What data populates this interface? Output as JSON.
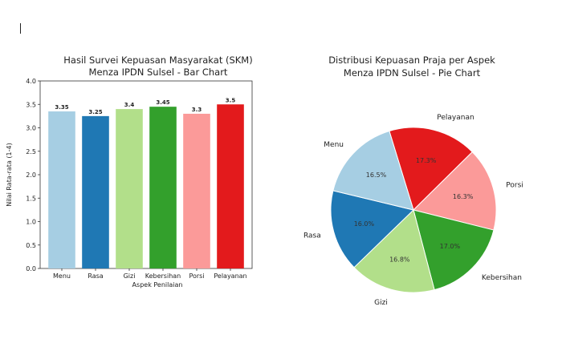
{
  "chart_data": [
    {
      "type": "bar",
      "title": "Hasil Survei Kepuasan Masyarakat (SKM)",
      "subtitle": "Menza IPDN Sulsel - Bar Chart",
      "xlabel": "Aspek Penilaian",
      "ylabel": "Nilai Rata-rata (1-4)",
      "ylim": [
        0,
        4.0
      ],
      "yticks": [
        "0.0",
        "0.5",
        "1.0",
        "1.5",
        "2.0",
        "2.5",
        "3.0",
        "3.5",
        "4.0"
      ],
      "categories": [
        "Menu",
        "Rasa",
        "Gizi",
        "Kebersihan",
        "Porsi",
        "Pelayanan"
      ],
      "values": [
        3.35,
        3.25,
        3.4,
        3.45,
        3.3,
        3.5
      ],
      "value_labels": [
        "3.35",
        "3.25",
        "3.4",
        "3.45",
        "3.3",
        "3.5"
      ],
      "colors": [
        "#a6cee3",
        "#1f78b4",
        "#b2df8a",
        "#33a02c",
        "#fb9a99",
        "#e31a1c"
      ],
      "grid": false
    },
    {
      "type": "pie",
      "title": "Distribusi Kepuasan Praja per Aspek",
      "subtitle": "Menza IPDN Sulsel - Pie Chart",
      "slices": [
        {
          "label": "Pelayanan",
          "value": 17.3,
          "pct": "17.3%",
          "color": "#e31a1c"
        },
        {
          "label": "Porsi",
          "value": 16.3,
          "pct": "16.3%",
          "color": "#fb9a99"
        },
        {
          "label": "Kebersihan",
          "value": 17.0,
          "pct": "17.0%",
          "color": "#33a02c"
        },
        {
          "label": "Gizi",
          "value": 16.8,
          "pct": "16.8%",
          "color": "#b2df8a"
        },
        {
          "label": "Rasa",
          "value": 16.0,
          "pct": "16.0%",
          "color": "#1f78b4"
        },
        {
          "label": "Menu",
          "value": 16.5,
          "pct": "16.5%",
          "color": "#a6cee3"
        }
      ]
    }
  ]
}
